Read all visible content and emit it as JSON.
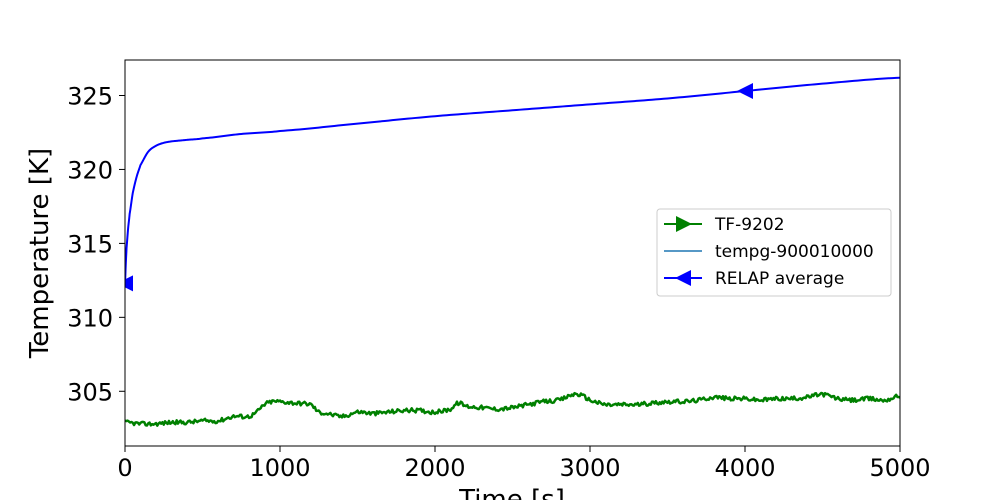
{
  "chart_data": {
    "type": "line",
    "xlabel": "Time [s]",
    "ylabel": "Temperature [K]",
    "xlim": [
      0,
      5000
    ],
    "ylim": [
      301.3,
      327.4
    ],
    "x_ticks": [
      0,
      1000,
      2000,
      3000,
      4000,
      5000
    ],
    "y_ticks": [
      305,
      310,
      315,
      320,
      325
    ],
    "grid": false,
    "legend_position": "center-right",
    "series": [
      {
        "name": "TF-9202",
        "color": "#008000",
        "marker": "triangle-right",
        "x": [
          0,
          100,
          200,
          300,
          400,
          500,
          600,
          700,
          800,
          850,
          900,
          950,
          1000,
          1100,
          1200,
          1250,
          1300,
          1400,
          1500,
          1600,
          1700,
          1800,
          1900,
          2000,
          2100,
          2150,
          2200,
          2300,
          2400,
          2500,
          2600,
          2700,
          2800,
          2900,
          2950,
          3000,
          3100,
          3200,
          3300,
          3400,
          3500,
          3600,
          3700,
          3800,
          3900,
          4000,
          4100,
          4200,
          4300,
          4400,
          4500,
          4600,
          4700,
          4800,
          4900,
          5000
        ],
        "values": [
          302.9,
          302.8,
          302.8,
          302.9,
          302.9,
          303.0,
          303.0,
          303.3,
          303.3,
          303.6,
          304.1,
          304.3,
          304.3,
          304.2,
          304.1,
          303.6,
          303.5,
          303.3,
          303.6,
          303.5,
          303.6,
          303.7,
          303.7,
          303.6,
          303.8,
          304.2,
          304.0,
          303.9,
          303.8,
          303.9,
          304.1,
          304.3,
          304.4,
          304.8,
          304.7,
          304.4,
          304.1,
          304.1,
          304.1,
          304.2,
          304.3,
          304.3,
          304.4,
          304.6,
          304.5,
          304.5,
          304.4,
          304.5,
          304.5,
          304.6,
          304.8,
          304.5,
          304.4,
          304.5,
          304.4,
          304.7
        ]
      },
      {
        "name": "tempg-900010000",
        "color": "#1f77b4",
        "marker": "none"
      },
      {
        "name": "RELAP average",
        "color": "#0000ff",
        "marker": "triangle-left",
        "marker_x": [
          0,
          4000
        ],
        "x": [
          0,
          5,
          10,
          20,
          30,
          50,
          75,
          100,
          150,
          200,
          250,
          300,
          400,
          500,
          750,
          1000,
          1500,
          2000,
          2500,
          3000,
          3500,
          4000,
          4500,
          5000
        ],
        "values": [
          312.3,
          313.6,
          314.7,
          316.0,
          317.0,
          318.4,
          319.5,
          320.3,
          321.2,
          321.6,
          321.8,
          321.9,
          322.0,
          322.1,
          322.4,
          322.6,
          323.1,
          323.6,
          324.0,
          324.4,
          324.8,
          325.3,
          325.8,
          326.2
        ]
      }
    ]
  }
}
